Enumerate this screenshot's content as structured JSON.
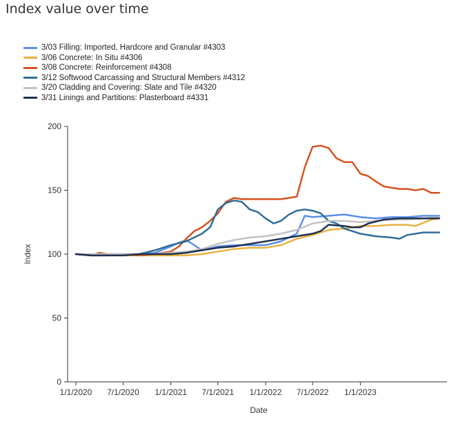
{
  "title": "Index value over time",
  "chart_data": {
    "type": "line",
    "xlabel": "Date",
    "ylabel": "Index",
    "ylim": [
      0,
      200
    ],
    "yticks": [
      0,
      50,
      100,
      150,
      200
    ],
    "xlim": [
      "2020-01-01",
      "2023-12-01"
    ],
    "xtick_labels": [
      "1/1/2020",
      "7/1/2020",
      "1/1/2021",
      "7/1/2021",
      "1/1/2022",
      "7/1/2022",
      "1/1/2023"
    ],
    "xtick_dates": [
      "2020-01-01",
      "2020-07-01",
      "2021-01-01",
      "2021-07-01",
      "2022-01-01",
      "2022-07-01",
      "2023-01-01"
    ],
    "grid": false,
    "legend_position": "top-left",
    "series": [
      {
        "name": "3/03 Filling: Imported, Hardcore and Granular #4303",
        "color": "#5b8ee6",
        "x": [
          "2020-01-01",
          "2020-03-01",
          "2020-05-01",
          "2020-07-01",
          "2020-09-01",
          "2020-11-01",
          "2021-01-01",
          "2021-02-01",
          "2021-03-01",
          "2021-04-01",
          "2021-05-01",
          "2021-07-01",
          "2021-09-01",
          "2021-11-01",
          "2022-01-01",
          "2022-03-01",
          "2022-05-01",
          "2022-06-01",
          "2022-07-01",
          "2022-09-01",
          "2022-11-01",
          "2023-01-01",
          "2023-03-01",
          "2023-05-01",
          "2023-07-01",
          "2023-09-01",
          "2023-11-01"
        ],
        "y": [
          100,
          99,
          100,
          99,
          100,
          101,
          106,
          109,
          111,
          107,
          103,
          106,
          107,
          107,
          107,
          110,
          116,
          130,
          129,
          130,
          131,
          129,
          128,
          129,
          129,
          130,
          130
        ]
      },
      {
        "name": "3/06 Concrete: In Situ #4306",
        "color": "#e8b23f",
        "x": [
          "2020-01-01",
          "2020-03-01",
          "2020-05-01",
          "2020-07-01",
          "2020-09-01",
          "2020-11-01",
          "2021-01-01",
          "2021-03-01",
          "2021-05-01",
          "2021-07-01",
          "2021-09-01",
          "2021-11-01",
          "2022-01-01",
          "2022-03-01",
          "2022-05-01",
          "2022-07-01",
          "2022-09-01",
          "2022-11-01",
          "2023-01-01",
          "2023-03-01",
          "2023-05-01",
          "2023-07-01",
          "2023-08-01",
          "2023-10-01",
          "2023-11-01"
        ],
        "y": [
          100,
          99,
          100,
          99,
          99,
          99,
          99,
          99,
          100,
          102,
          104,
          105,
          105,
          107,
          112,
          115,
          119,
          120,
          122,
          122,
          123,
          123,
          122,
          127,
          128
        ]
      },
      {
        "name": "3/08 Concrete: Reinforcement #4308",
        "color": "#d6521f",
        "x": [
          "2020-01-01",
          "2020-03-01",
          "2020-04-01",
          "2020-05-01",
          "2020-07-01",
          "2020-09-01",
          "2020-11-01",
          "2021-01-01",
          "2021-02-01",
          "2021-03-01",
          "2021-04-01",
          "2021-05-01",
          "2021-06-01",
          "2021-07-01",
          "2021-08-01",
          "2021-09-01",
          "2021-10-01",
          "2021-11-01",
          "2021-12-01",
          "2022-01-01",
          "2022-02-01",
          "2022-03-01",
          "2022-04-01",
          "2022-05-01",
          "2022-06-01",
          "2022-07-01",
          "2022-08-01",
          "2022-09-01",
          "2022-10-01",
          "2022-11-01",
          "2022-12-01",
          "2023-01-01",
          "2023-02-01",
          "2023-03-01",
          "2023-04-01",
          "2023-05-01",
          "2023-06-01",
          "2023-07-01",
          "2023-08-01",
          "2023-09-01",
          "2023-10-01",
          "2023-11-01"
        ],
        "y": [
          100,
          99,
          101,
          100,
          100,
          99,
          100,
          102,
          106,
          112,
          118,
          121,
          126,
          132,
          141,
          144,
          143,
          143,
          143,
          143,
          143,
          143,
          144,
          145,
          168,
          184,
          185,
          183,
          175,
          172,
          172,
          163,
          161,
          157,
          153,
          152,
          151,
          151,
          150,
          151,
          148,
          148
        ]
      },
      {
        "name": "3/12 Softwood Carcassing and Structural Members #4312",
        "color": "#2e6e96",
        "x": [
          "2020-01-01",
          "2020-03-01",
          "2020-05-01",
          "2020-07-01",
          "2020-09-01",
          "2020-11-01",
          "2021-01-01",
          "2021-03-01",
          "2021-05-01",
          "2021-06-01",
          "2021-07-01",
          "2021-08-01",
          "2021-09-01",
          "2021-10-01",
          "2021-11-01",
          "2021-12-01",
          "2022-01-01",
          "2022-02-01",
          "2022-03-01",
          "2022-04-01",
          "2022-05-01",
          "2022-06-01",
          "2022-07-01",
          "2022-08-01",
          "2022-09-01",
          "2022-10-01",
          "2022-11-01",
          "2022-12-01",
          "2023-01-01",
          "2023-03-01",
          "2023-05-01",
          "2023-06-01",
          "2023-07-01",
          "2023-09-01",
          "2023-11-01"
        ],
        "y": [
          100,
          99,
          99,
          100,
          100,
          103,
          107,
          110,
          116,
          121,
          135,
          140,
          142,
          141,
          135,
          133,
          128,
          124,
          126,
          131,
          134,
          135,
          134,
          132,
          126,
          124,
          120,
          118,
          116,
          114,
          113,
          112,
          115,
          117,
          117
        ]
      },
      {
        "name": "3/20 Cladding and Covering: Slate and Tile #4320",
        "color": "#c2c2c2",
        "x": [
          "2020-01-01",
          "2020-03-01",
          "2020-05-01",
          "2020-07-01",
          "2020-09-01",
          "2020-11-01",
          "2021-01-01",
          "2021-03-01",
          "2021-05-01",
          "2021-07-01",
          "2021-09-01",
          "2021-11-01",
          "2022-01-01",
          "2022-03-01",
          "2022-05-01",
          "2022-07-01",
          "2022-09-01",
          "2022-11-01",
          "2023-01-01",
          "2023-03-01",
          "2023-05-01",
          "2023-07-01",
          "2023-09-01",
          "2023-11-01"
        ],
        "y": [
          100,
          100,
          100,
          100,
          100,
          100,
          101,
          102,
          104,
          108,
          111,
          113,
          114,
          116,
          119,
          124,
          126,
          126,
          125,
          126,
          127,
          127,
          128,
          129
        ]
      },
      {
        "name": "3/31 Linings and Partitions: Plasterboard #4331",
        "color": "#1f2f4f",
        "x": [
          "2020-01-01",
          "2020-03-01",
          "2020-05-01",
          "2020-07-01",
          "2020-09-01",
          "2020-11-01",
          "2021-01-01",
          "2021-03-01",
          "2021-05-01",
          "2021-07-01",
          "2021-09-01",
          "2021-11-01",
          "2022-01-01",
          "2022-03-01",
          "2022-05-01",
          "2022-07-01",
          "2022-08-01",
          "2022-09-01",
          "2022-11-01",
          "2022-12-01",
          "2023-01-01",
          "2023-02-01",
          "2023-04-01",
          "2023-06-01",
          "2023-08-01",
          "2023-10-01",
          "2023-11-01"
        ],
        "y": [
          100,
          99,
          99,
          99,
          100,
          100,
          100,
          101,
          103,
          105,
          106,
          108,
          110,
          112,
          114,
          116,
          118,
          123,
          122,
          121,
          121,
          124,
          127,
          128,
          128,
          128,
          128
        ]
      }
    ]
  }
}
